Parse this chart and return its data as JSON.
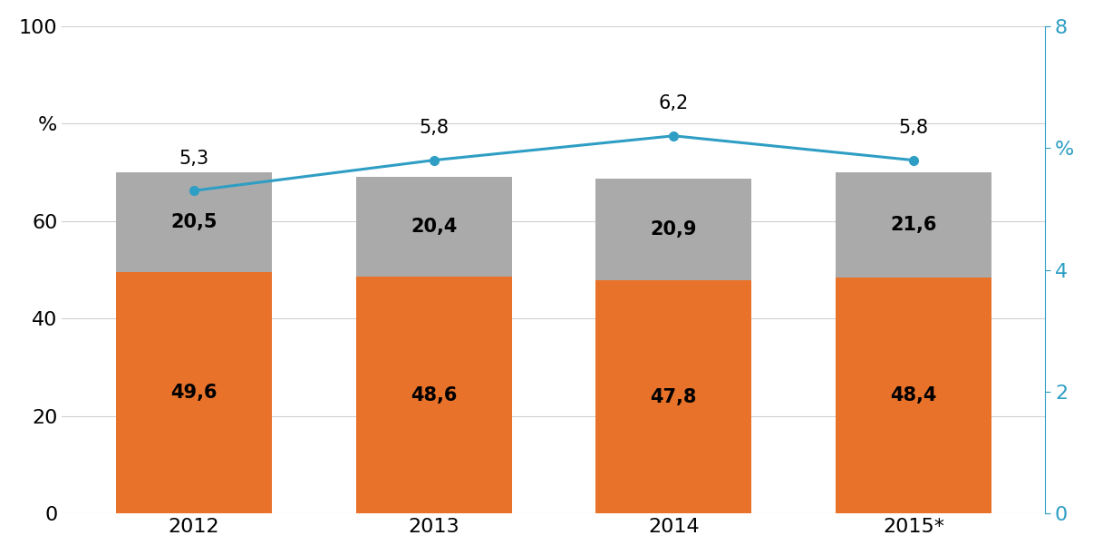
{
  "categories": [
    "2012",
    "2013",
    "2014",
    "2015*"
  ],
  "orange_values": [
    49.6,
    48.6,
    47.8,
    48.4
  ],
  "gray_values": [
    20.5,
    20.4,
    20.9,
    21.6
  ],
  "line_values": [
    5.3,
    5.8,
    6.2,
    5.8
  ],
  "orange_labels": [
    "49,6",
    "48,6",
    "47,8",
    "48,4"
  ],
  "gray_labels": [
    "20,5",
    "20,4",
    "20,9",
    "21,6"
  ],
  "line_labels": [
    "5,3",
    "5,8",
    "6,2",
    "5,8"
  ],
  "orange_color": "#E8722A",
  "gray_color": "#AAAAAA",
  "line_color": "#2E9EC4",
  "bar_width": 0.65,
  "left_ylim": [
    0,
    100
  ],
  "right_ylim": [
    0,
    8
  ],
  "left_yticks": [
    0,
    20,
    40,
    60,
    100
  ],
  "right_yticks": [
    0,
    2,
    4,
    8
  ],
  "background_color": "#FFFFFF",
  "grid_color": "#D0D0D0",
  "grid_yticks": [
    0,
    20,
    40,
    60,
    80,
    100
  ],
  "font_size_bar": 15,
  "font_size_line": 15,
  "font_size_axis": 16,
  "font_size_ylabel": 17
}
